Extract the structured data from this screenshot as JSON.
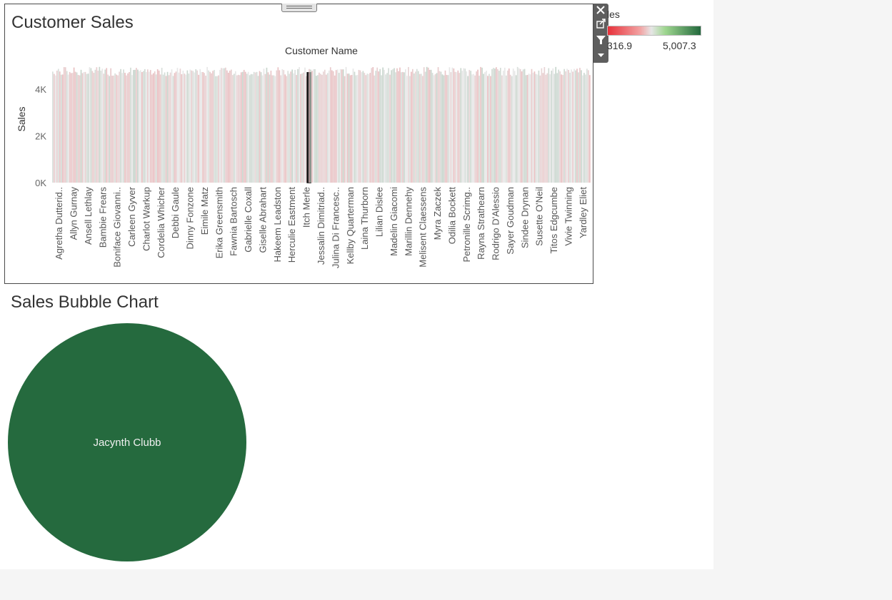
{
  "dashboard": {
    "bar_sheet_title": "Customer Sales",
    "bubble_sheet_title": "Sales Bubble Chart"
  },
  "legend": {
    "title": "les",
    "min_label": "316.9",
    "max_label": "5,007.3",
    "colors": [
      "#e8313a",
      "#f2a3a3",
      "#e6e6e6",
      "#9ed68f",
      "#23693d"
    ]
  },
  "toolbar": {
    "icons": [
      "close-icon",
      "popout-icon",
      "filter-icon",
      "more-options-icon"
    ]
  },
  "chart_data": [
    {
      "type": "bar",
      "title": "Customer Sales",
      "xlabel": "Customer Name",
      "ylabel": "Sales",
      "yticks": [
        "0K",
        "2K",
        "4K"
      ],
      "ylim": [
        0,
        5007.3
      ],
      "color_range": [
        316.9,
        5007.3
      ],
      "visible_categories": [
        "Agretha Dutterid..",
        "Allyn Gurnay",
        "Ansell Lethlay",
        "Bambie Frears",
        "Boniface Giovanni..",
        "Carleen Gyver",
        "Charlot Warkup",
        "Cordelia Whicher",
        "Debbi Gaule",
        "Dinny Fonzone",
        "Eimile Matz",
        "Erika Greensmith",
        "Fawnia Bartosch",
        "Gabrielle Coxall",
        "Giselle Abrahart",
        "Hakeem Leadston",
        "Herculie Eastment",
        "Itch Merle",
        "Jessalin Dimitriad..",
        "Julina Di Francesc..",
        "Kellby Quarterman",
        "Laina Thurborn",
        "Lilian Dislee",
        "Madelin Giacomi",
        "Marillin Dennehy",
        "Melisent Claessens",
        "Myra Zaczek",
        "Odilia Bockett",
        "Petronille Scrimg..",
        "Rayna Strathearn",
        "Rodrigo D'Alessio",
        "Sayer Goudman",
        "Sindee Drynan",
        "Susette O'Neil",
        "Titos Edgcumbe",
        "Vivie Twinning",
        "Yardley Eliet"
      ],
      "highlighted_category": "Itch Merle"
    },
    {
      "type": "scatter",
      "title": "Sales Bubble Chart",
      "bubbles": [
        {
          "label": "Jacynth Clubb",
          "color": "#256a3e"
        }
      ]
    }
  ]
}
